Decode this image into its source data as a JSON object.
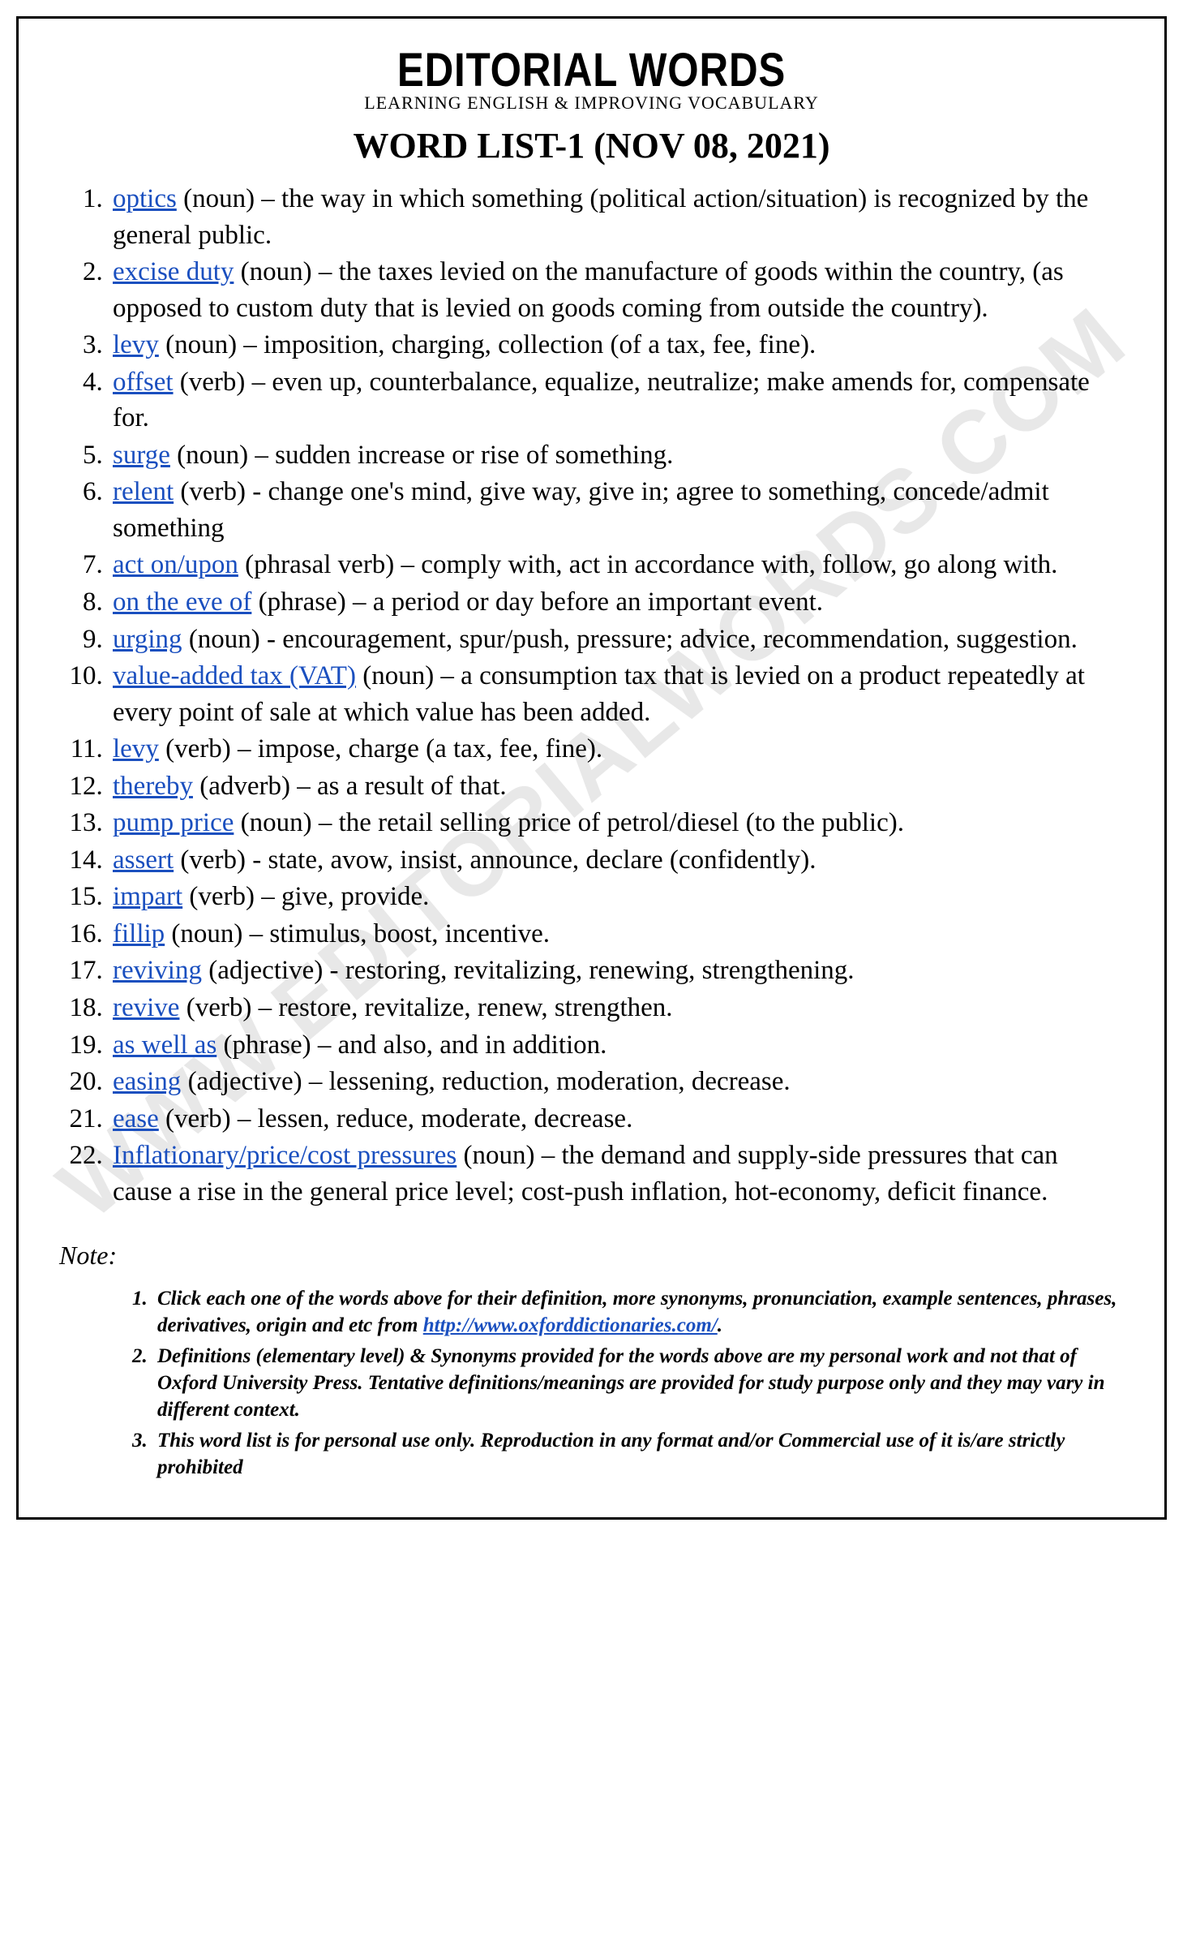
{
  "watermark_text": "WWW.EDITORIALWORDS.COM",
  "header": {
    "brand": "EDITORIAL WORDS",
    "tagline": "LEARNING ENGLISH & IMPROVING VOCABULARY",
    "list_title": "WORD LIST-1 (NOV 08, 2021)"
  },
  "colors": {
    "link": "#1a4fbf",
    "text": "#000000",
    "border": "#000000",
    "background": "#ffffff",
    "watermark": "rgba(128,128,128,0.18)"
  },
  "words": [
    {
      "term": "optics",
      "pos": "(noun)",
      "sep": " – ",
      "def": "the way in which something (political action/situation) is recognized by the general public."
    },
    {
      "term": "excise duty",
      "pos": "(noun)",
      "sep": " – ",
      "def": "the taxes levied on the manufacture of goods within the country, (as opposed to custom duty that is levied on goods coming from outside the country)."
    },
    {
      "term": "levy",
      "pos": "(noun)",
      "sep": " – ",
      "def": "imposition, charging, collection (of a tax, fee, fine)."
    },
    {
      "term": "offset",
      "pos": "(verb)",
      "sep": " – ",
      "def": "even up, counterbalance, equalize, neutralize; make amends for, compensate for."
    },
    {
      "term": "surge",
      "pos": "(noun)",
      "sep": " – ",
      "def": "sudden increase or rise of something."
    },
    {
      "term": "relent",
      "pos": "(verb)",
      "sep": " - ",
      "def": "change one's mind, give way, give in; agree to something, concede/admit something"
    },
    {
      "term": "act on/upon",
      "pos": "(phrasal verb)",
      "sep": " – ",
      "def": "comply with, act in accordance with, follow, go along with."
    },
    {
      "term": "on the eve of",
      "pos": "(phrase)",
      "sep": " – ",
      "def": "a period or day before an important event."
    },
    {
      "term": "urging",
      "pos": "(noun)",
      "sep": " - ",
      "def": "encouragement, spur/push, pressure; advice, recommendation, suggestion."
    },
    {
      "term": "value-added tax (VAT)",
      "pos": "(noun)",
      "sep": " – ",
      "def": "a consumption tax that is levied on a product repeatedly at every point of sale at which value has been added."
    },
    {
      "term": "levy",
      "pos": "(verb)",
      "sep": " – ",
      "def": "impose, charge (a tax, fee, fine)."
    },
    {
      "term": "thereby",
      "pos": "(adverb)",
      "sep": " – ",
      "def": "as a result of that."
    },
    {
      "term": "pump price",
      "pos": "(noun)",
      "sep": " – ",
      "def": "the retail selling price of petrol/diesel (to the public)."
    },
    {
      "term": "assert",
      "pos": "(verb)",
      "sep": " - ",
      "def": "state, avow, insist, announce, declare (confidently)."
    },
    {
      "term": "impart",
      "pos": "(verb)",
      "sep": " – ",
      "def": "give, provide."
    },
    {
      "term": "fillip",
      "pos": "(noun)",
      "sep": " – ",
      "def": "stimulus, boost, incentive."
    },
    {
      "term": "reviving",
      "pos": "(adjective)",
      "sep": " - ",
      "def": "restoring, revitalizing, renewing, strengthening."
    },
    {
      "term": "revive",
      "pos": "(verb)",
      "sep": " – ",
      "def": "restore, revitalize, renew, strengthen."
    },
    {
      "term": "as well as",
      "pos": "(phrase)",
      "sep": " – ",
      "def": "and also, and in addition."
    },
    {
      "term": "easing",
      "pos": "(adjective)",
      "sep": " – ",
      "def": "lessening, reduction, moderation, decrease."
    },
    {
      "term": "ease",
      "pos": "(verb)",
      "sep": " – ",
      "def": "lessen, reduce, moderate, decrease."
    },
    {
      "term": "Inflationary/price/cost pressures",
      "pos": "(noun)",
      "sep": " – ",
      "def": "the demand and supply-side pressures that can cause a rise in the general price level; cost-push inflation, hot-economy, deficit finance."
    }
  ],
  "note_label": "Note:",
  "notes": [
    {
      "pre": "Click each one of the words above for their definition, more synonyms, pronunciation, example sentences, phrases, derivatives, origin and etc from ",
      "url": "http://www.oxforddictionaries.com/",
      "post": "."
    },
    {
      "pre": "Definitions (elementary level) & Synonyms provided for the words above are my personal work and not that of Oxford University Press. Tentative definitions/meanings are provided for study purpose only and they may vary in different context.",
      "url": "",
      "post": ""
    },
    {
      "pre": "This word list is for personal use only. Reproduction in any format and/or Commercial use of it is/are strictly prohibited",
      "url": "",
      "post": ""
    }
  ]
}
